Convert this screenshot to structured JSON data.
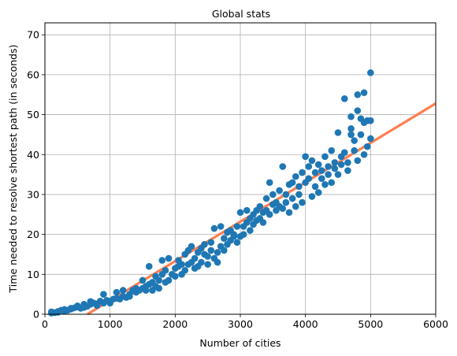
{
  "chart_data": {
    "type": "scatter",
    "title": "Global stats",
    "xlabel": "Number of cities",
    "ylabel": "Time needed to resolve shortest path (in seconds)",
    "xlim": [
      0,
      6000
    ],
    "ylim": [
      0,
      73
    ],
    "xticks": [
      "0",
      "1000",
      "2000",
      "3000",
      "4000",
      "5000",
      "6000"
    ],
    "yticks": [
      "0",
      "10",
      "20",
      "30",
      "40",
      "50",
      "60",
      "70"
    ],
    "grid": true,
    "points": [
      [
        100,
        0.3
      ],
      [
        100,
        0.6
      ],
      [
        150,
        0.4
      ],
      [
        200,
        0.7
      ],
      [
        200,
        0.5
      ],
      [
        250,
        1.0
      ],
      [
        300,
        0.8
      ],
      [
        300,
        1.2
      ],
      [
        350,
        1.0
      ],
      [
        400,
        1.3
      ],
      [
        400,
        1.5
      ],
      [
        450,
        1.6
      ],
      [
        500,
        1.8
      ],
      [
        500,
        2.1
      ],
      [
        550,
        1.5
      ],
      [
        600,
        2.5
      ],
      [
        600,
        1.7
      ],
      [
        650,
        2.0
      ],
      [
        700,
        3.2
      ],
      [
        700,
        2.5
      ],
      [
        750,
        2.8
      ],
      [
        800,
        2.6
      ],
      [
        800,
        2.2
      ],
      [
        850,
        3.3
      ],
      [
        900,
        5.0
      ],
      [
        900,
        2.8
      ],
      [
        950,
        3.5
      ],
      [
        1000,
        3.2
      ],
      [
        1000,
        2.8
      ],
      [
        1050,
        3.8
      ],
      [
        1100,
        4.0
      ],
      [
        1100,
        5.5
      ],
      [
        1150,
        3.8
      ],
      [
        1200,
        4.5
      ],
      [
        1200,
        6.0
      ],
      [
        1250,
        4.2
      ],
      [
        1300,
        5.0
      ],
      [
        1300,
        4.5
      ],
      [
        1350,
        6.0
      ],
      [
        1400,
        5.5
      ],
      [
        1400,
        6.5
      ],
      [
        1450,
        6.0
      ],
      [
        1500,
        6.5
      ],
      [
        1500,
        8.5
      ],
      [
        1550,
        7.0
      ],
      [
        1550,
        6.0
      ],
      [
        1600,
        12.0
      ],
      [
        1600,
        7.5
      ],
      [
        1650,
        8.0
      ],
      [
        1650,
        6.0
      ],
      [
        1700,
        7.0
      ],
      [
        1700,
        9.5
      ],
      [
        1750,
        8.5
      ],
      [
        1750,
        6.5
      ],
      [
        1800,
        13.5
      ],
      [
        1800,
        10.0
      ],
      [
        1850,
        8.0
      ],
      [
        1850,
        11.0
      ],
      [
        1900,
        14.0
      ],
      [
        1900,
        8.5
      ],
      [
        1950,
        10.0
      ],
      [
        2000,
        11.5
      ],
      [
        2000,
        9.5
      ],
      [
        2050,
        12.0
      ],
      [
        2050,
        13.5
      ],
      [
        2100,
        10.0
      ],
      [
        2100,
        12.5
      ],
      [
        2150,
        15.0
      ],
      [
        2150,
        11.0
      ],
      [
        2200,
        16.0
      ],
      [
        2200,
        12.5
      ],
      [
        2250,
        13.0
      ],
      [
        2250,
        17.0
      ],
      [
        2300,
        11.5
      ],
      [
        2300,
        14.0
      ],
      [
        2350,
        15.5
      ],
      [
        2350,
        12.0
      ],
      [
        2400,
        16.5
      ],
      [
        2400,
        13.0
      ],
      [
        2450,
        15.0
      ],
      [
        2450,
        17.5
      ],
      [
        2500,
        12.5
      ],
      [
        2500,
        14.5
      ],
      [
        2550,
        16.0
      ],
      [
        2550,
        18.0
      ],
      [
        2600,
        21.5
      ],
      [
        2600,
        14.0
      ],
      [
        2650,
        15.5
      ],
      [
        2650,
        13.0
      ],
      [
        2700,
        22.0
      ],
      [
        2700,
        17.0
      ],
      [
        2750,
        16.0
      ],
      [
        2750,
        19.0
      ],
      [
        2800,
        20.5
      ],
      [
        2800,
        17.5
      ],
      [
        2850,
        21.0
      ],
      [
        2850,
        18.5
      ],
      [
        2900,
        19.5
      ],
      [
        2900,
        20.0
      ],
      [
        2950,
        18.0
      ],
      [
        2950,
        22.0
      ],
      [
        3000,
        25.5
      ],
      [
        3000,
        19.5
      ],
      [
        3050,
        22.0
      ],
      [
        3050,
        20.0
      ],
      [
        3100,
        26.0
      ],
      [
        3100,
        23.0
      ],
      [
        3150,
        21.0
      ],
      [
        3150,
        24.0
      ],
      [
        3200,
        25.0
      ],
      [
        3200,
        22.5
      ],
      [
        3250,
        23.5
      ],
      [
        3250,
        26.0
      ],
      [
        3300,
        24.0
      ],
      [
        3300,
        27.0
      ],
      [
        3350,
        25.5
      ],
      [
        3350,
        23.0
      ],
      [
        3400,
        29.0
      ],
      [
        3400,
        26.0
      ],
      [
        3450,
        33.0
      ],
      [
        3450,
        25.0
      ],
      [
        3500,
        27.5
      ],
      [
        3500,
        30.0
      ],
      [
        3550,
        26.0
      ],
      [
        3550,
        28.0
      ],
      [
        3600,
        27.0
      ],
      [
        3600,
        31.0
      ],
      [
        3650,
        37.0
      ],
      [
        3650,
        26.5
      ],
      [
        3700,
        30.0
      ],
      [
        3700,
        28.0
      ],
      [
        3750,
        32.5
      ],
      [
        3750,
        25.5
      ],
      [
        3800,
        29.0
      ],
      [
        3800,
        33.0
      ],
      [
        3850,
        34.5
      ],
      [
        3850,
        27.0
      ],
      [
        3900,
        30.0
      ],
      [
        3900,
        32.0
      ],
      [
        3950,
        35.5
      ],
      [
        3950,
        28.0
      ],
      [
        4000,
        39.5
      ],
      [
        4000,
        33.0
      ],
      [
        4050,
        34.0
      ],
      [
        4050,
        37.0
      ],
      [
        4100,
        38.5
      ],
      [
        4100,
        29.5
      ],
      [
        4150,
        32.0
      ],
      [
        4150,
        35.5
      ],
      [
        4200,
        37.5
      ],
      [
        4200,
        30.5
      ],
      [
        4250,
        34.0
      ],
      [
        4250,
        36.0
      ],
      [
        4300,
        39.5
      ],
      [
        4300,
        32.5
      ],
      [
        4350,
        35.0
      ],
      [
        4350,
        37.0
      ],
      [
        4400,
        41.0
      ],
      [
        4400,
        33.0
      ],
      [
        4450,
        36.5
      ],
      [
        4450,
        38.0
      ],
      [
        4500,
        45.5
      ],
      [
        4500,
        35.0
      ],
      [
        4550,
        37.5
      ],
      [
        4550,
        39.5
      ],
      [
        4600,
        54.0
      ],
      [
        4600,
        40.5
      ],
      [
        4650,
        38.0
      ],
      [
        4650,
        36.0
      ],
      [
        4700,
        49.5
      ],
      [
        4700,
        46.5
      ],
      [
        4700,
        45.0
      ],
      [
        4750,
        43.5
      ],
      [
        4750,
        41.0
      ],
      [
        4800,
        55.0
      ],
      [
        4800,
        51.0
      ],
      [
        4800,
        38.5
      ],
      [
        4850,
        49.0
      ],
      [
        4850,
        45.0
      ],
      [
        4900,
        55.5
      ],
      [
        4900,
        48.0
      ],
      [
        4900,
        40.0
      ],
      [
        4950,
        48.5
      ],
      [
        4950,
        42.0
      ],
      [
        5000,
        60.5
      ],
      [
        5000,
        48.5
      ],
      [
        5000,
        44.0
      ]
    ],
    "fit_line": {
      "x": [
        600,
        6000
      ],
      "y": [
        -0.5,
        52.8
      ]
    },
    "colors": {
      "points": "#1f77b4",
      "fit_line": "#ff7f50",
      "grid": "#b0b0b0"
    }
  }
}
